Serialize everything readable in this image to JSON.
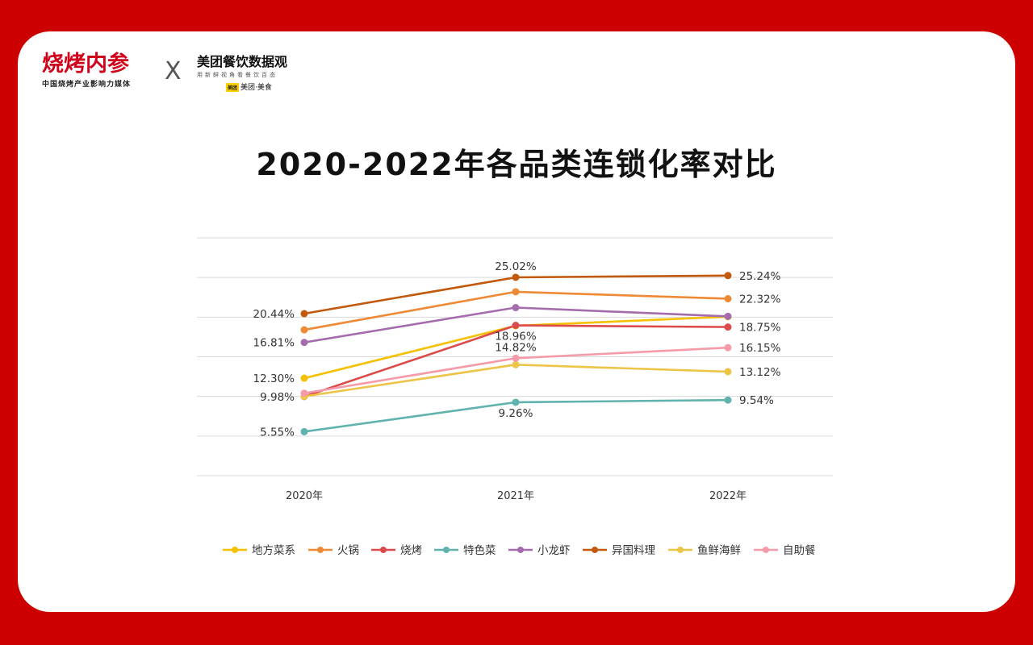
{
  "brand_left": {
    "name": "烧烤内参",
    "tagline": "中国烧烤产业影响力媒体"
  },
  "brand_separator": "X",
  "brand_right": {
    "name": "美团餐饮数据观",
    "tagline": "用新鲜视角看餐饮百态",
    "badge": "美团",
    "badge_text": "美团·美食"
  },
  "colors": {
    "地方菜系": "#f5c000",
    "火锅": "#ee8a35",
    "烧烤": "#dc4b4b",
    "特色菜": "#5fb3ac",
    "小龙虾": "#a56cad",
    "异国料理": "#c25a0e",
    "鱼鲜海鲜": "#ecc548",
    "自助餐": "#f59aa8"
  },
  "chart_data": {
    "type": "line",
    "title": "2020-2022年各品类连锁化率对比",
    "categories": [
      "2020年",
      "2021年",
      "2022年"
    ],
    "ylim": [
      0,
      30
    ],
    "grid": true,
    "legend_position": "bottom",
    "series": [
      {
        "name": "地方菜系",
        "values": [
          12.3,
          18.9,
          20.05
        ],
        "labels": [
          "12.30%",
          "",
          ""
        ]
      },
      {
        "name": "火锅",
        "values": [
          18.4,
          23.2,
          22.32
        ],
        "labels": [
          "",
          "",
          "22.32%"
        ]
      },
      {
        "name": "烧烤",
        "values": [
          9.98,
          18.96,
          18.75
        ],
        "labels": [
          "9.98%",
          "18.96%",
          "18.75%"
        ]
      },
      {
        "name": "特色菜",
        "values": [
          5.55,
          9.26,
          9.54
        ],
        "labels": [
          "5.55%",
          "9.26%",
          "9.54%"
        ]
      },
      {
        "name": "小龙虾",
        "values": [
          16.81,
          21.2,
          20.1
        ],
        "labels": [
          "16.81%",
          "",
          ""
        ]
      },
      {
        "name": "异国料理",
        "values": [
          20.44,
          25.02,
          25.24
        ],
        "labels": [
          "20.44%",
          "25.02%",
          "25.24%"
        ]
      },
      {
        "name": "鱼鲜海鲜",
        "values": [
          10.0,
          14.0,
          13.12
        ],
        "labels": [
          "",
          "",
          "13.12%"
        ]
      },
      {
        "name": "自助餐",
        "values": [
          10.4,
          14.82,
          16.15
        ],
        "labels": [
          "",
          "14.82%",
          "16.15%"
        ]
      }
    ]
  }
}
